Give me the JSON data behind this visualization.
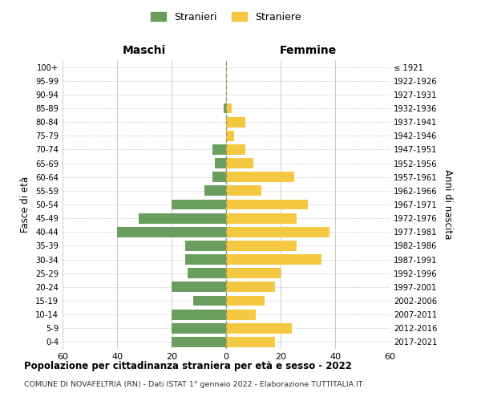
{
  "age_groups": [
    "0-4",
    "5-9",
    "10-14",
    "15-19",
    "20-24",
    "25-29",
    "30-34",
    "35-39",
    "40-44",
    "45-49",
    "50-54",
    "55-59",
    "60-64",
    "65-69",
    "70-74",
    "75-79",
    "80-84",
    "85-89",
    "90-94",
    "95-99",
    "100+"
  ],
  "birth_years": [
    "2017-2021",
    "2012-2016",
    "2007-2011",
    "2002-2006",
    "1997-2001",
    "1992-1996",
    "1987-1991",
    "1982-1986",
    "1977-1981",
    "1972-1976",
    "1967-1971",
    "1962-1966",
    "1957-1961",
    "1952-1956",
    "1947-1951",
    "1942-1946",
    "1937-1941",
    "1932-1936",
    "1927-1931",
    "1922-1926",
    "≤ 1921"
  ],
  "maschi": [
    20,
    20,
    20,
    12,
    20,
    14,
    15,
    15,
    40,
    32,
    20,
    8,
    5,
    4,
    5,
    0,
    0,
    1,
    0,
    0,
    0
  ],
  "femmine": [
    18,
    24,
    11,
    14,
    18,
    20,
    35,
    26,
    38,
    26,
    30,
    13,
    25,
    10,
    7,
    3,
    7,
    2,
    0,
    0,
    0
  ],
  "male_color": "#6a9e5e",
  "female_color": "#f5c842",
  "background_color": "#ffffff",
  "grid_color": "#cccccc",
  "title": "Popolazione per cittadinanza straniera per età e sesso - 2022",
  "subtitle": "COMUNE DI NOVAFELTRIA (RN) - Dati ISTAT 1° gennaio 2022 - Elaborazione TUTTITALIA.IT",
  "xlabel_left": "Maschi",
  "xlabel_right": "Femmine",
  "ylabel_left": "Fasce di età",
  "ylabel_right": "Anni di nascita",
  "legend_male": "Stranieri",
  "legend_female": "Straniere",
  "xlim": 60,
  "bar_height": 0.75
}
